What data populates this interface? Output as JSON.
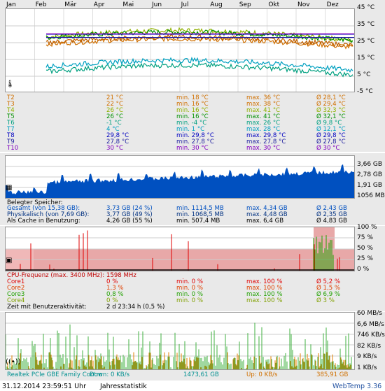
{
  "months": [
    "Jan",
    "Feb",
    "Mär",
    "Apr",
    "Mai",
    "Jun",
    "Jul",
    "Aug",
    "Sep",
    "Okt",
    "Nov",
    "Dez"
  ],
  "temp_axis": [
    "45 °C",
    "35 °C",
    "25 °C",
    "15 °C",
    "5 °C",
    "-5 °C"
  ],
  "temp_rows": [
    {
      "name": "T2",
      "cur": "21 °C",
      "min": "min. 18 °C",
      "max": "max. 36 °C",
      "avg": "Ø 28,1 °C",
      "color": "#d07000"
    },
    {
      "name": "T3",
      "cur": "22 °C",
      "min": "min. 16 °C",
      "max": "max. 38 °C",
      "avg": "Ø 29,4 °C",
      "color": "#d07000"
    },
    {
      "name": "T4",
      "cur": "26 °C",
      "min": "min. 16 °C",
      "max": "max. 41 °C",
      "avg": "Ø 32,3 °C",
      "color": "#90b000"
    },
    {
      "name": "T5",
      "cur": "26 °C",
      "min": "min. 16 °C",
      "max": "max. 41 °C",
      "avg": "Ø 32,1 °C",
      "color": "#009000"
    },
    {
      "name": "T6",
      "cur": "-1 °C",
      "min": "min. -4 °C",
      "max": "max. 26 °C",
      "avg": "Ø 9,8 °C",
      "color": "#00a080"
    },
    {
      "name": "T7",
      "cur": "4 °C",
      "min": "min. 1 °C",
      "max": "max. 28 °C",
      "avg": "Ø 12,1 °C",
      "color": "#00a0c0"
    },
    {
      "name": "T8",
      "cur": "29,8 °C",
      "min": "min. 29,8 °C",
      "max": "max. 29,8 °C",
      "avg": "Ø 29,8 °C",
      "color": "#0000c0"
    },
    {
      "name": "T9",
      "cur": "27,8 °C",
      "min": "min. 27,8 °C",
      "max": "max. 27,8 °C",
      "avg": "Ø 27,8 °C",
      "color": "#2020a0"
    },
    {
      "name": "T10",
      "cur": "30 °C",
      "min": "min. 30 °C",
      "max": "max. 30 °C",
      "avg": "Ø 30 °C",
      "color": "#8000c0"
    }
  ],
  "mem_axis": [
    "3,66 GB",
    "2,78 GB",
    "1,91 GB",
    "1056 MB"
  ],
  "mem_title": "Belegter Speicher:",
  "mem_rows": [
    {
      "name": "Gesamt (von 15,38 GB):",
      "cur": "3,73 GB (24 %)",
      "min": "min. 1114,5 MB",
      "max": "max. 4,34 GB",
      "avg": "Ø 2,43 GB",
      "color": "#0050c0"
    },
    {
      "name": "Physikalisch (von 7,69 GB):",
      "cur": "3,77 GB (49 %)",
      "min": "min. 1068,5 MB",
      "max": "max. 4,48 GB",
      "avg": "Ø 2,35 GB",
      "color": "#003080"
    },
    {
      "name": "Als Cache in Benutzung:",
      "cur": "4,26 GB (55 %)",
      "min": "min. 507,4 MB",
      "max": "max. 6,4 GB",
      "avg": "Ø 4,83 GB",
      "color": "#000000"
    }
  ],
  "cpu_axis": [
    "100 %",
    "75 %",
    "50 %",
    "25 %",
    "0 %"
  ],
  "cpu_freq": "CPU-Frequenz (max. 3400 MHz): 1598 MHz",
  "cpu_rows": [
    {
      "name": "Core1",
      "cur": "0 %",
      "min": "min. 0 %",
      "max": "max. 100 %",
      "avg": "Ø 5,2 %",
      "color": "#e00000"
    },
    {
      "name": "Core2",
      "cur": "1,3 %",
      "min": "min. 0 %",
      "max": "max. 100 %",
      "avg": "Ø 1,5 %",
      "color": "#e04000"
    },
    {
      "name": "Core3",
      "cur": "0,8 %",
      "min": "min. 0 %",
      "max": "max. 100 %",
      "avg": "Ø 6,9 %",
      "color": "#20a000"
    },
    {
      "name": "Core4",
      "cur": "0 %",
      "min": "min. 0 %",
      "max": "max. 100 %",
      "avg": "Ø 3 %",
      "color": "#80a000"
    }
  ],
  "user_activity": {
    "label": "Zeit mit Benutzeraktivität:",
    "value": "2 d 23:34 h (0,5 %)"
  },
  "net_axis": [
    "60 MB/s",
    "6,6 MB/s",
    "746 KB/s",
    "82 KB/s",
    "9 KB/s",
    "1 KB/s"
  ],
  "net_row": {
    "name": "Realtek PCIe GBE Family Contro",
    "down": "Down: 0 KB/s",
    "down_total": "1473,61 GB",
    "up": "Up: 0 KB/s",
    "up_total": "385,91 GB"
  },
  "footer": {
    "timestamp": "31.12.2014 23:59:51 Uhr",
    "mode": "Jahresstatistik",
    "app": "WebTemp 3.36"
  }
}
